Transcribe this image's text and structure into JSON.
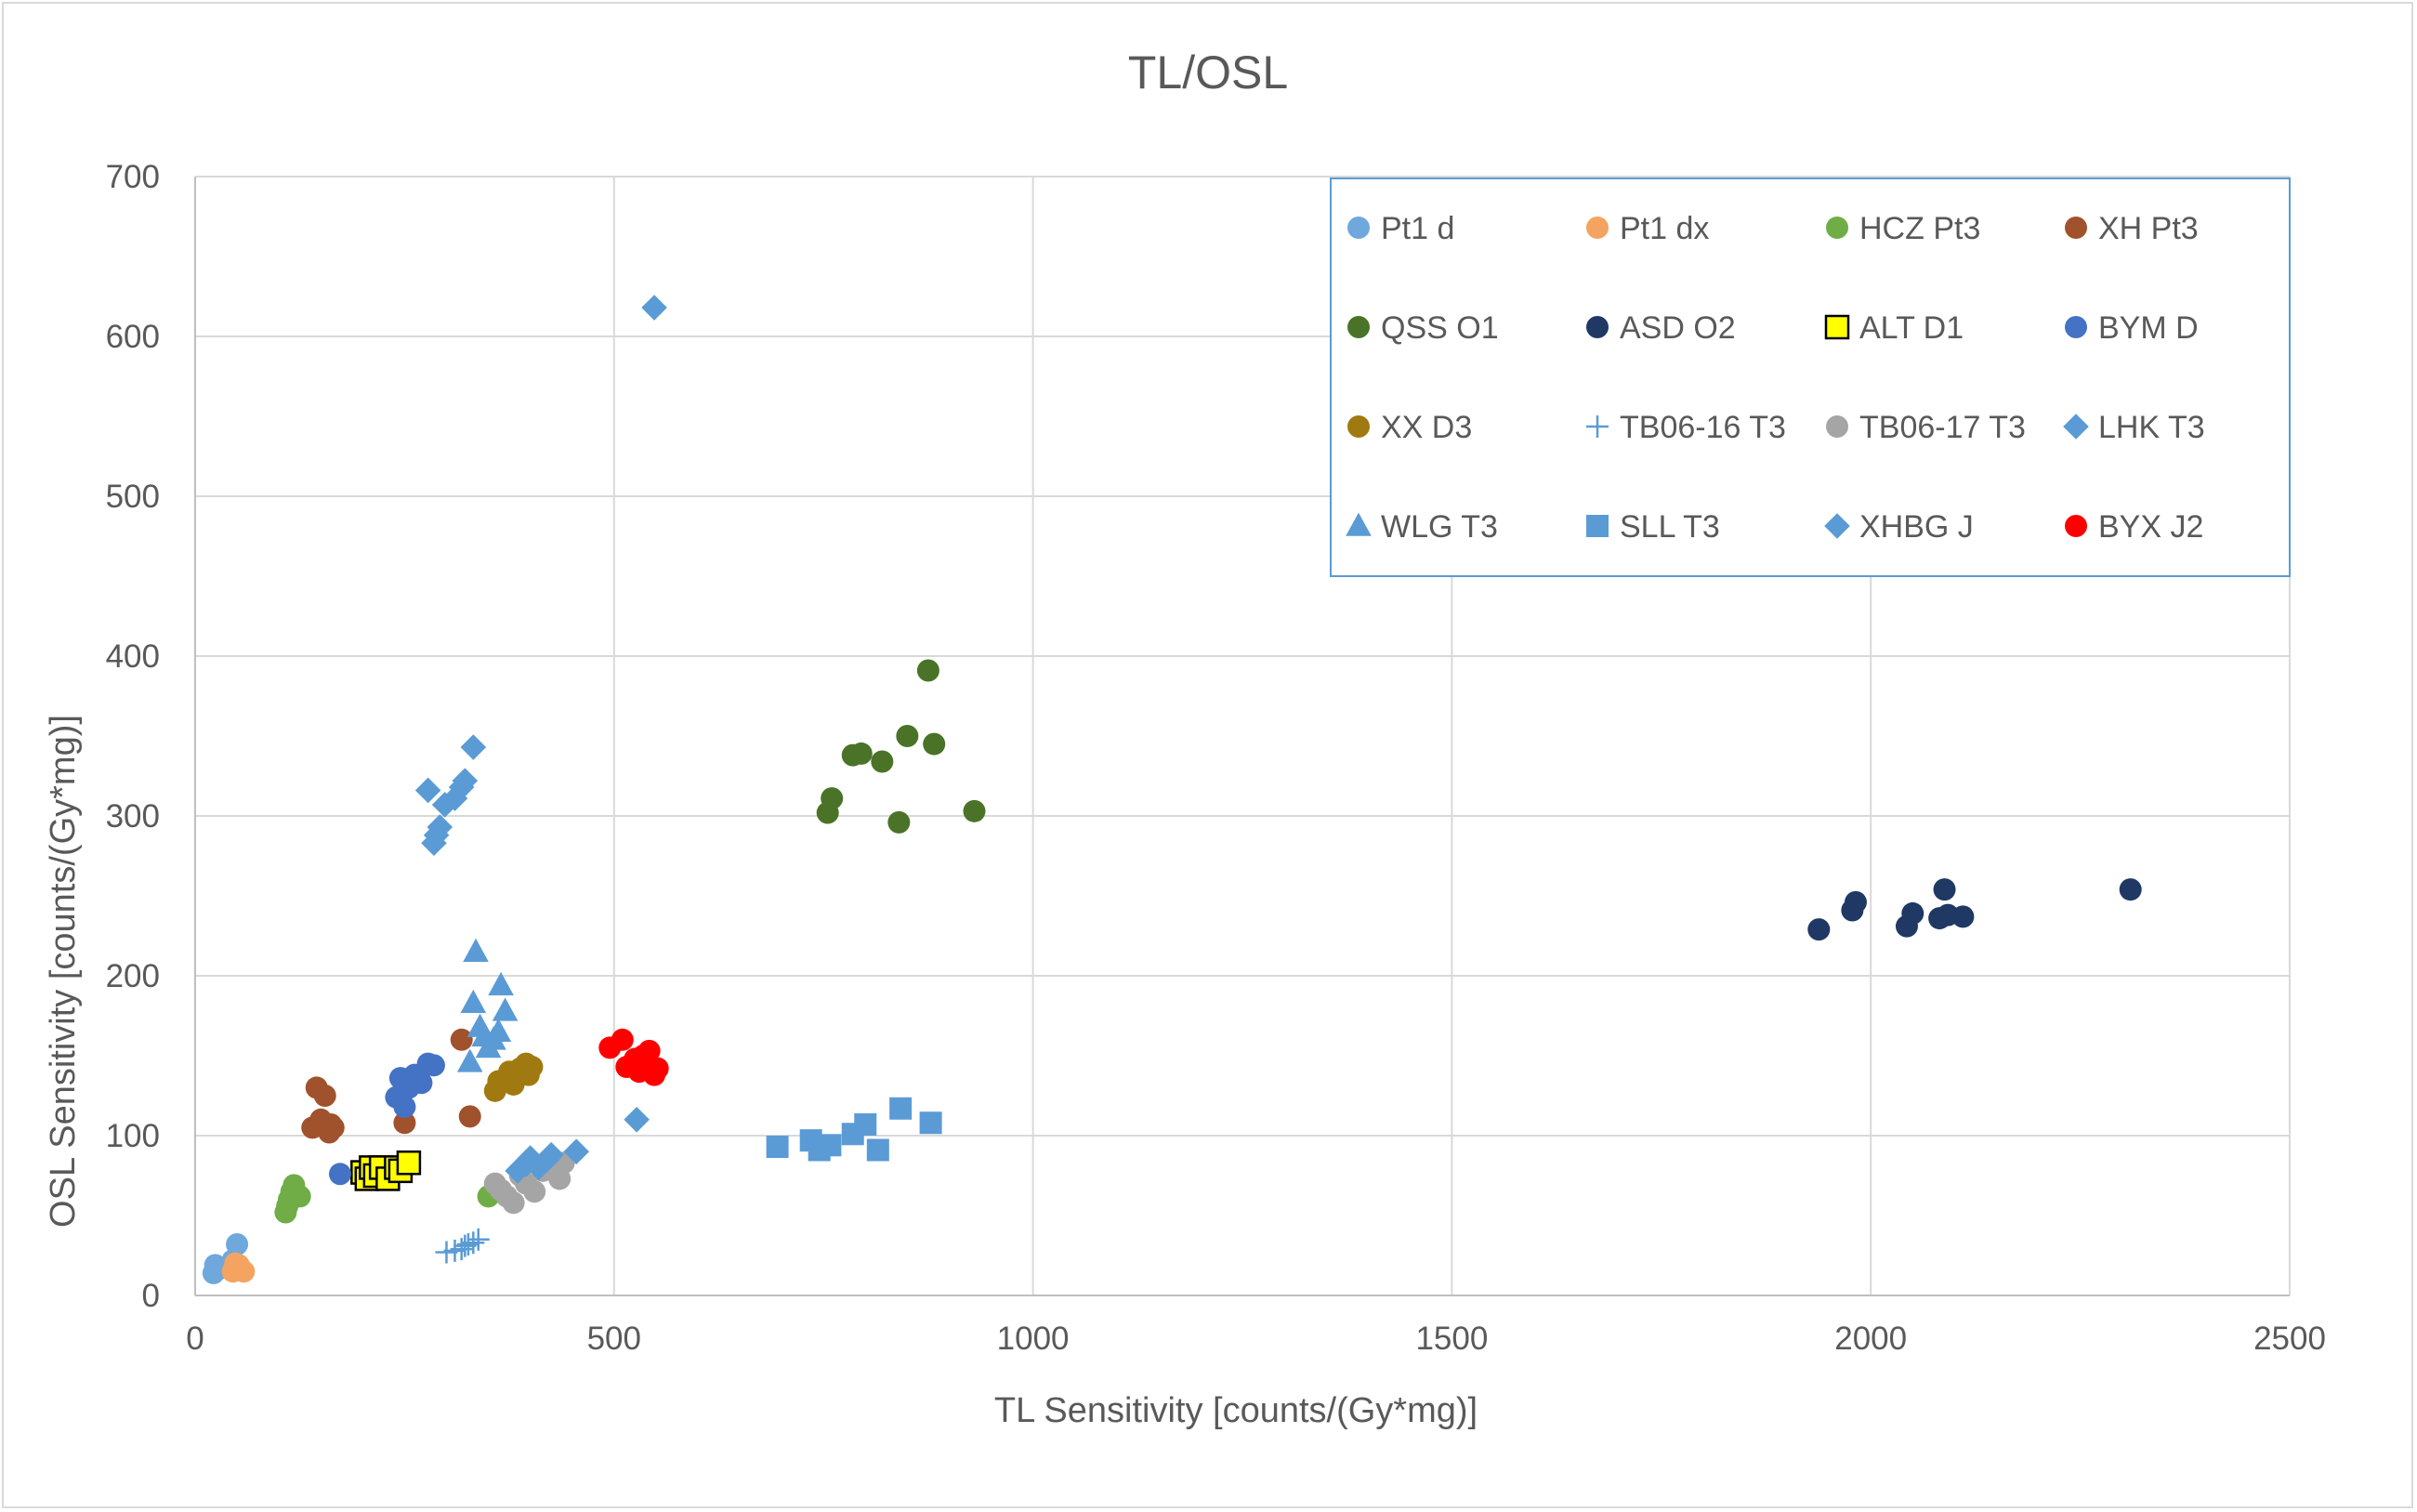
{
  "chart_data": {
    "type": "scatter",
    "title": "TL/OSL",
    "xlabel": "TL Sensitivity [counts/(Gy*mg)]",
    "ylabel": "OSL Sensitivity [counts/(Gy*mg)]",
    "xlim": [
      0,
      2500
    ],
    "ylim": [
      0,
      700
    ],
    "x_ticks": [
      0,
      500,
      1000,
      1500,
      2000,
      2500
    ],
    "y_ticks": [
      0,
      100,
      200,
      300,
      400,
      500,
      600,
      700
    ],
    "grid": true,
    "legend_position": "top-right",
    "series": [
      {
        "name": "Pt1 d",
        "marker": "circle",
        "color": "#6fa8dc",
        "points": [
          [
            22,
            14
          ],
          [
            24,
            19
          ],
          [
            26,
            16
          ],
          [
            50,
            32
          ],
          [
            45,
            22
          ],
          [
            48,
            18
          ]
        ]
      },
      {
        "name": "Pt1 dx",
        "marker": "circle",
        "color": "#f4a460",
        "points": [
          [
            45,
            15
          ],
          [
            52,
            19
          ],
          [
            55,
            16
          ],
          [
            58,
            15
          ],
          [
            48,
            20
          ]
        ]
      },
      {
        "name": "HCZ Pt3",
        "marker": "circle",
        "color": "#70ad47",
        "points": [
          [
            108,
            52
          ],
          [
            112,
            60
          ],
          [
            115,
            65
          ],
          [
            118,
            69
          ],
          [
            125,
            62
          ],
          [
            110,
            56
          ],
          [
            350,
            62
          ]
        ]
      },
      {
        "name": "XH Pt3",
        "marker": "circle",
        "color": "#a0522d",
        "points": [
          [
            140,
            105
          ],
          [
            145,
            130
          ],
          [
            150,
            110
          ],
          [
            155,
            125
          ],
          [
            160,
            102
          ],
          [
            162,
            107
          ],
          [
            165,
            105
          ],
          [
            250,
            108
          ],
          [
            318,
            160
          ],
          [
            328,
            112
          ]
        ]
      },
      {
        "name": "QSS O1",
        "marker": "circle",
        "color": "#4a7328",
        "points": [
          [
            755,
            302
          ],
          [
            760,
            311
          ],
          [
            785,
            338
          ],
          [
            795,
            339
          ],
          [
            820,
            334
          ],
          [
            840,
            296
          ],
          [
            850,
            350
          ],
          [
            875,
            391
          ],
          [
            882,
            345
          ],
          [
            930,
            303
          ]
        ]
      },
      {
        "name": "ASD O2",
        "marker": "circle",
        "color": "#1f3864",
        "points": [
          [
            1938,
            229
          ],
          [
            1978,
            241
          ],
          [
            1982,
            246
          ],
          [
            2043,
            231
          ],
          [
            2050,
            239
          ],
          [
            2082,
            236
          ],
          [
            2088,
            254
          ],
          [
            2092,
            238
          ],
          [
            2110,
            237
          ],
          [
            2310,
            254
          ]
        ]
      },
      {
        "name": "ALT D1",
        "marker": "square-outline",
        "color": "#ffff00",
        "points": [
          [
            200,
            77
          ],
          [
            205,
            73
          ],
          [
            210,
            80
          ],
          [
            215,
            75
          ],
          [
            222,
            80
          ],
          [
            230,
            73
          ],
          [
            240,
            80
          ],
          [
            245,
            78
          ],
          [
            255,
            83
          ]
        ]
      },
      {
        "name": "BYM D",
        "marker": "circle",
        "color": "#4472c4",
        "points": [
          [
            173,
            76
          ],
          [
            240,
            124
          ],
          [
            245,
            136
          ],
          [
            250,
            118
          ],
          [
            255,
            130
          ],
          [
            262,
            138
          ],
          [
            270,
            133
          ],
          [
            278,
            145
          ],
          [
            285,
            144
          ]
        ]
      },
      {
        "name": "XX D3",
        "marker": "circle",
        "color": "#a07a10",
        "points": [
          [
            358,
            128
          ],
          [
            362,
            134
          ],
          [
            375,
            140
          ],
          [
            380,
            132
          ],
          [
            388,
            142
          ],
          [
            395,
            145
          ],
          [
            398,
            138
          ],
          [
            402,
            143
          ]
        ]
      },
      {
        "name": "TB06-16 T3",
        "marker": "plus",
        "color": "#5b9bd5",
        "points": [
          [
            300,
            27
          ],
          [
            310,
            28
          ],
          [
            318,
            29
          ],
          [
            322,
            31
          ],
          [
            326,
            32
          ],
          [
            332,
            33
          ],
          [
            338,
            35
          ]
        ]
      },
      {
        "name": "TB06-17 T3",
        "marker": "circle",
        "color": "#a5a5a5",
        "points": [
          [
            358,
            70
          ],
          [
            365,
            66
          ],
          [
            372,
            62
          ],
          [
            380,
            58
          ],
          [
            388,
            75
          ],
          [
            395,
            70
          ],
          [
            405,
            65
          ],
          [
            415,
            78
          ],
          [
            425,
            84
          ],
          [
            435,
            73
          ],
          [
            440,
            83
          ]
        ]
      },
      {
        "name": "LHK T3",
        "marker": "diamond",
        "color": "#5b9bd5",
        "points": [
          [
            278,
            316
          ],
          [
            285,
            283
          ],
          [
            288,
            288
          ],
          [
            292,
            293
          ],
          [
            298,
            307
          ],
          [
            310,
            311
          ],
          [
            318,
            318
          ],
          [
            322,
            322
          ],
          [
            332,
            343
          ],
          [
            385,
            78
          ],
          [
            395,
            82
          ],
          [
            400,
            86
          ],
          [
            410,
            80
          ],
          [
            420,
            85
          ],
          [
            425,
            88
          ],
          [
            455,
            90
          ],
          [
            527,
            110
          ]
        ]
      },
      {
        "name": "WLG T3",
        "marker": "triangle",
        "color": "#5b9bd5",
        "points": [
          [
            328,
            146
          ],
          [
            332,
            183
          ],
          [
            335,
            215
          ],
          [
            340,
            168
          ],
          [
            345,
            162
          ],
          [
            350,
            155
          ],
          [
            356,
            160
          ],
          [
            362,
            165
          ],
          [
            365,
            194
          ],
          [
            370,
            178
          ]
        ]
      },
      {
        "name": "SLL T3",
        "marker": "square",
        "color": "#5b9bd5",
        "points": [
          [
            695,
            93
          ],
          [
            735,
            97
          ],
          [
            745,
            91
          ],
          [
            758,
            94
          ],
          [
            785,
            101
          ],
          [
            800,
            107
          ],
          [
            815,
            91
          ],
          [
            842,
            117
          ],
          [
            878,
            108
          ]
        ]
      },
      {
        "name": "XHBG J",
        "marker": "diamond",
        "color": "#5b9bd5",
        "points": [
          [
            548,
            618
          ]
        ]
      },
      {
        "name": "BYX J2",
        "marker": "circle",
        "color": "#ff0000",
        "points": [
          [
            495,
            155
          ],
          [
            510,
            160
          ],
          [
            515,
            143
          ],
          [
            525,
            148
          ],
          [
            530,
            140
          ],
          [
            535,
            150
          ],
          [
            542,
            153
          ],
          [
            548,
            138
          ],
          [
            552,
            142
          ]
        ]
      }
    ]
  }
}
